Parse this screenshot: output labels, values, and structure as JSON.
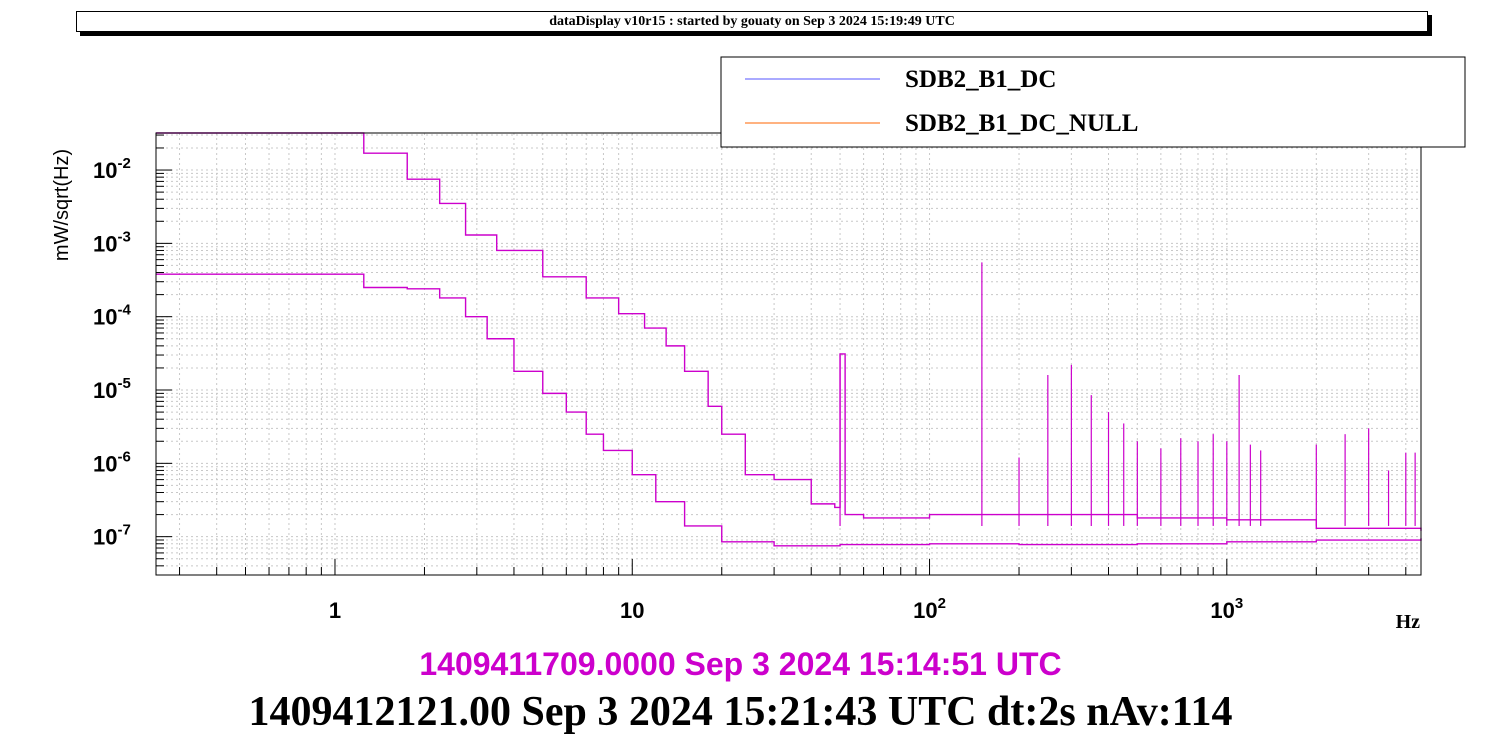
{
  "header": {
    "title": "dataDisplay v10r15 : started by gouaty on Sep  3 2024 15:19:49 UTC"
  },
  "colors": {
    "trace_primary": "#cc00cc",
    "legend_line_1": "#5555ff",
    "legend_line_2": "#ff6600",
    "time_line_1": "#cc00cc",
    "time_line_2": "#000000"
  },
  "chart_data": {
    "type": "line",
    "title": "",
    "xlabel": "Hz",
    "ylabel": "mW/sqrt(Hz)",
    "xscale": "log",
    "yscale": "log",
    "xlim": [
      0.25,
      4500
    ],
    "ylim": [
      3e-08,
      0.032
    ],
    "grid": true,
    "legend_position": "top-right",
    "x_tick_labels": [
      {
        "value": 1,
        "base": "1",
        "exp": ""
      },
      {
        "value": 10,
        "base": "10",
        "exp": ""
      },
      {
        "value": 100,
        "base": "10",
        "exp": "2"
      },
      {
        "value": 1000,
        "base": "10",
        "exp": "3"
      }
    ],
    "y_tick_labels": [
      {
        "value": 0.01,
        "base": "10",
        "exp": "-2"
      },
      {
        "value": 0.001,
        "base": "10",
        "exp": "-3"
      },
      {
        "value": 0.0001,
        "base": "10",
        "exp": "-4"
      },
      {
        "value": 1e-05,
        "base": "10",
        "exp": "-5"
      },
      {
        "value": 1e-06,
        "base": "10",
        "exp": "-6"
      },
      {
        "value": 1e-07,
        "base": "10",
        "exp": "-7"
      }
    ],
    "series": [
      {
        "name": "SDB2_B1_DC",
        "legend_color": "#5555ff",
        "x": [
          0.25,
          1.25,
          1.75,
          2.25,
          2.75,
          3.5,
          5,
          7,
          9,
          11,
          13,
          15,
          18,
          20,
          24,
          30,
          40,
          48,
          50,
          52,
          60,
          100,
          150,
          200,
          300,
          500,
          1000,
          2000,
          4500
        ],
        "y": [
          0.032,
          0.017,
          0.0075,
          0.0035,
          0.0013,
          0.0008,
          0.00035,
          0.00018,
          0.00011,
          7e-05,
          4e-05,
          1.8e-05,
          6e-06,
          2.5e-06,
          7e-07,
          6e-07,
          2.8e-07,
          2.5e-07,
          3.1e-05,
          2e-07,
          1.8e-07,
          2e-07,
          2e-07,
          2e-07,
          2e-07,
          1.8e-07,
          1.7e-07,
          1.3e-07,
          1.2e-07
        ]
      },
      {
        "name": "SDB2_B1_DC_NULL",
        "legend_color": "#ff6600",
        "x": [
          0.25,
          0.75,
          1.25,
          1.75,
          2.25,
          2.75,
          3.25,
          4,
          5,
          6,
          7,
          8,
          10,
          12,
          15,
          20,
          30,
          50,
          100,
          200,
          500,
          1000,
          2000,
          4500
        ],
        "y": [
          0.00038,
          0.00038,
          0.00025,
          0.00024,
          0.00018,
          0.0001,
          5e-05,
          1.8e-05,
          9e-06,
          5e-06,
          2.5e-06,
          1.5e-06,
          7e-07,
          3e-07,
          1.4e-07,
          8.5e-08,
          7.5e-08,
          7.8e-08,
          8e-08,
          7.8e-08,
          8e-08,
          8.5e-08,
          9e-08,
          9.5e-08
        ]
      }
    ],
    "peaks": [
      {
        "x": 50,
        "y": 3.1e-05
      },
      {
        "x": 150,
        "y": 0.00055
      },
      {
        "x": 200,
        "y": 1.2e-06
      },
      {
        "x": 250,
        "y": 1.6e-05
      },
      {
        "x": 300,
        "y": 2.2e-05
      },
      {
        "x": 350,
        "y": 8.5e-06
      },
      {
        "x": 400,
        "y": 5e-06
      },
      {
        "x": 450,
        "y": 3.5e-06
      },
      {
        "x": 500,
        "y": 2e-06
      },
      {
        "x": 600,
        "y": 1.6e-06
      },
      {
        "x": 700,
        "y": 2.2e-06
      },
      {
        "x": 800,
        "y": 2e-06
      },
      {
        "x": 900,
        "y": 2.5e-06
      },
      {
        "x": 1000,
        "y": 2e-06
      },
      {
        "x": 1100,
        "y": 1.6e-05
      },
      {
        "x": 1200,
        "y": 1.8e-06
      },
      {
        "x": 1300,
        "y": 1.5e-06
      },
      {
        "x": 2000,
        "y": 1.8e-06
      },
      {
        "x": 2500,
        "y": 2.5e-06
      },
      {
        "x": 3000,
        "y": 3e-06
      },
      {
        "x": 3500,
        "y": 8e-07
      },
      {
        "x": 4000,
        "y": 1.4e-06
      },
      {
        "x": 4300,
        "y": 1.4e-06
      }
    ]
  },
  "footer": {
    "time_line_1": "1409411709.0000 Sep 3 2024 15:14:51 UTC",
    "time_line_2": "1409412121.00 Sep 3 2024 15:21:43 UTC dt:2s nAv:114"
  }
}
